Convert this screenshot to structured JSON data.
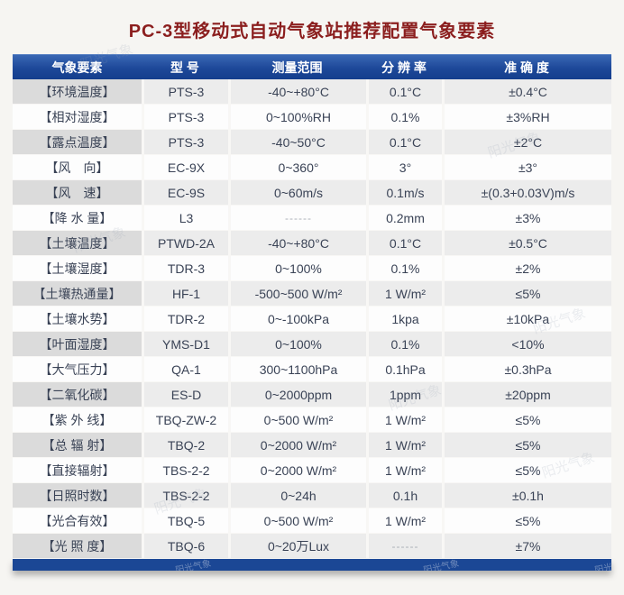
{
  "title": "PC-3型移动式自动气象站推荐配置气象要素",
  "watermark": {
    "text": "阳光气象"
  },
  "colors": {
    "title_red": "#8b1e1e",
    "header_blue": "#1d4899",
    "footer_bar_blue": "#1b4795",
    "shaded_row": "#ececec",
    "shaded_label_cell": "#dbdbdb",
    "cell_text": "#3a4356",
    "page_background": "#f6f5f2"
  },
  "table": {
    "headers": [
      "气象要素",
      "型 号",
      "测量范围",
      "分 辨 率",
      "准 确 度"
    ],
    "columns_keys": [
      "element",
      "model",
      "range",
      "resolution",
      "accuracy"
    ],
    "rows": [
      {
        "element": "【环境温度】",
        "model": "PTS-3",
        "range": "-40~+80°C",
        "resolution": "0.1°C",
        "accuracy": "±0.4°C"
      },
      {
        "element": "【相对湿度】",
        "model": "PTS-3",
        "range": "0~100%RH",
        "resolution": "0.1%",
        "accuracy": "±3%RH"
      },
      {
        "element": "【露点温度】",
        "model": "PTS-3",
        "range": "-40~50°C",
        "resolution": "0.1°C",
        "accuracy": "±2°C"
      },
      {
        "element": "【风　向】",
        "model": "EC-9X",
        "range": "0~360°",
        "resolution": "3°",
        "accuracy": "±3°"
      },
      {
        "element": "【风　速】",
        "model": "EC-9S",
        "range": "0~60m/s",
        "resolution": "0.1m/s",
        "accuracy": "±(0.3+0.03V)m/s"
      },
      {
        "element": "【降 水 量】",
        "model": "L3",
        "range": "------",
        "resolution": "0.2mm",
        "accuracy": "±3%"
      },
      {
        "element": "【土壤温度】",
        "model": "PTWD-2A",
        "range": "-40~+80°C",
        "resolution": "0.1°C",
        "accuracy": "±0.5°C"
      },
      {
        "element": "【土壤湿度】",
        "model": "TDR-3",
        "range": "0~100%",
        "resolution": "0.1%",
        "accuracy": "±2%"
      },
      {
        "element": "【土壤热通量】",
        "model": "HF-1",
        "range": "-500~500 W/m²",
        "resolution": "1 W/m²",
        "accuracy": "≤5%"
      },
      {
        "element": "【土壤水势】",
        "model": "TDR-2",
        "range": "0~-100kPa",
        "resolution": "1kpa",
        "accuracy": "±10kPa"
      },
      {
        "element": "【叶面湿度】",
        "model": "YMS-D1",
        "range": "0~100%",
        "resolution": "0.1%",
        "accuracy": "<10%"
      },
      {
        "element": "【大气压力】",
        "model": "QA-1",
        "range": "300~1100hPa",
        "resolution": "0.1hPa",
        "accuracy": "±0.3hPa"
      },
      {
        "element": "【二氧化碳】",
        "model": "ES-D",
        "range": "0~2000ppm",
        "resolution": "1ppm",
        "accuracy": "±20ppm"
      },
      {
        "element": "【紫 外 线】",
        "model": "TBQ-ZW-2",
        "range": "0~500 W/m²",
        "resolution": "1 W/m²",
        "accuracy": "≤5%"
      },
      {
        "element": "【总 辐 射】",
        "model": "TBQ-2",
        "range": "0~2000 W/m²",
        "resolution": "1 W/m²",
        "accuracy": "≤5%"
      },
      {
        "element": "【直接辐射】",
        "model": "TBS-2-2",
        "range": "0~2000 W/m²",
        "resolution": "1 W/m²",
        "accuracy": "≤5%"
      },
      {
        "element": "【日照时数】",
        "model": "TBS-2-2",
        "range": "0~24h",
        "resolution": "0.1h",
        "accuracy": "±0.1h"
      },
      {
        "element": "【光合有效】",
        "model": "TBQ-5",
        "range": "0~500 W/m²",
        "resolution": "1 W/m²",
        "accuracy": "≤5%"
      },
      {
        "element": "【光 照 度】",
        "model": "TBQ-6",
        "range": "0~20万Lux",
        "resolution": "------",
        "accuracy": "±7%"
      }
    ]
  }
}
